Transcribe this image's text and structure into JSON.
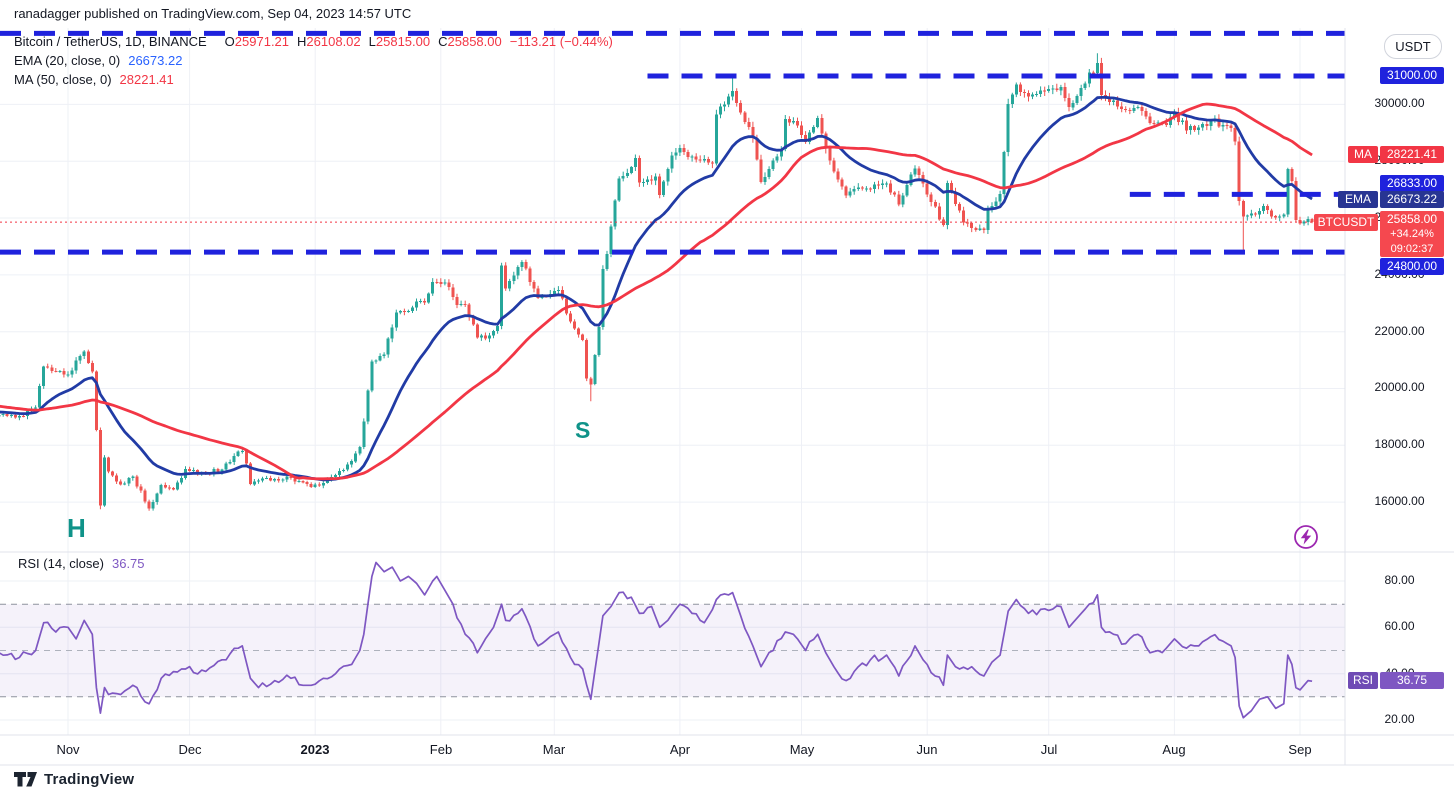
{
  "header": {
    "text": "ranadagger published on TradingView.com, Sep 04, 2023 14:57 UTC"
  },
  "toolbar": {
    "currency_button": "USDT"
  },
  "legend": {
    "symbol": "Bitcoin / TetherUS, 1D, BINANCE",
    "ohlc": [
      {
        "k": "O",
        "v": "25971.21"
      },
      {
        "k": "H",
        "v": "26108.02"
      },
      {
        "k": "L",
        "v": "25815.00"
      },
      {
        "k": "C",
        "v": "25858.00"
      }
    ],
    "change": "−113.21 (−0.44%)",
    "ema_label": "EMA (20, close, 0)",
    "ema_value": "26673.22",
    "ma_label": "MA (50, close, 0)",
    "ma_value": "28221.41"
  },
  "rsi_legend": {
    "label": "RSI (14, close)",
    "value": "36.75"
  },
  "price_axis": {
    "r31000": "31000.00",
    "ma_label": "MA",
    "ma_value": "28221.41",
    "r26833": "26833.00",
    "ema_label": "EMA",
    "ema_value": "26673.22",
    "sym_label": "BTCUSDT",
    "sym_price": "25858.00",
    "sym_change": "+34.24%",
    "sym_countdown": "09:02:37",
    "s24800": "24800.00",
    "rsi_label": "RSI",
    "rsi_value": "36.75"
  },
  "annotations": {
    "head_label": "H",
    "shoulder_label": "S"
  },
  "footer": {
    "brand": "TradingView"
  },
  "colors": {
    "up": "#26a69a",
    "down": "#ef5350",
    "ema": "#213ba5",
    "ma": "#f23645",
    "level_blue": "#1f22dd",
    "price_line": "#f23645",
    "rsi": "#7e57c2",
    "grid": "#eef0f6",
    "border": "#e0e3eb",
    "band_line": "#8f939e",
    "band_mid": "#aeb2bc"
  },
  "chart_data": {
    "type": "candlestick",
    "symbol": "BTCUSDT",
    "exchange": "BINANCE",
    "interval": "1D",
    "current_bar": {
      "o": 25971.21,
      "h": 26108.02,
      "l": 25815.0,
      "c": 25858.0,
      "change": -113.21,
      "change_pct": -0.44
    },
    "indicators": {
      "ema20": 26673.22,
      "ma50": 28221.41,
      "rsi14": 36.75
    },
    "ylim_price": [
      15500,
      32700
    ],
    "ylim_rsi": [
      10,
      95
    ],
    "day_zero": "2022-11-01",
    "price_anchors": [
      [
        -67,
        20010
      ],
      [
        -57,
        19790
      ],
      [
        -48,
        19300
      ],
      [
        -40,
        18900
      ],
      [
        -34,
        19600
      ],
      [
        -27,
        19060
      ],
      [
        -22,
        19150
      ],
      [
        -17,
        19070
      ],
      [
        -12,
        19040
      ],
      [
        -8,
        19330
      ],
      [
        -7,
        20080
      ],
      [
        -6,
        20770
      ],
      [
        -3,
        20600
      ],
      [
        0,
        20490
      ],
      [
        3,
        21150
      ],
      [
        4,
        21300
      ],
      [
        5,
        20900
      ],
      [
        6,
        20600
      ],
      [
        7,
        18545
      ],
      [
        8,
        15880
      ],
      [
        9,
        17570
      ],
      [
        10,
        17070
      ],
      [
        13,
        16620
      ],
      [
        16,
        16900
      ],
      [
        20,
        15780
      ],
      [
        23,
        16600
      ],
      [
        26,
        16450
      ],
      [
        29,
        17160
      ],
      [
        34,
        17020
      ],
      [
        38,
        17150
      ],
      [
        42,
        17780
      ],
      [
        43,
        17800
      ],
      [
        44,
        17360
      ],
      [
        45,
        16630
      ],
      [
        48,
        16840
      ],
      [
        51,
        16820
      ],
      [
        55,
        16840
      ],
      [
        58,
        16700
      ],
      [
        60,
        16540
      ],
      [
        63,
        16680
      ],
      [
        66,
        16950
      ],
      [
        70,
        17440
      ],
      [
        72,
        17943
      ],
      [
        73,
        18846
      ],
      [
        74,
        19930
      ],
      [
        75,
        20954
      ],
      [
        78,
        21190
      ],
      [
        81,
        22670
      ],
      [
        83,
        22710
      ],
      [
        86,
        23060
      ],
      [
        88,
        23020
      ],
      [
        90,
        23750
      ],
      [
        93,
        23730
      ],
      [
        96,
        22940
      ],
      [
        98,
        22950
      ],
      [
        101,
        21790
      ],
      [
        104,
        21870
      ],
      [
        106,
        22200
      ],
      [
        107,
        24330
      ],
      [
        108,
        23520
      ],
      [
        111,
        24280
      ],
      [
        112,
        24450
      ],
      [
        116,
        23190
      ],
      [
        119,
        23330
      ],
      [
        121,
        23470
      ],
      [
        124,
        22350
      ],
      [
        127,
        21710
      ],
      [
        128,
        20360
      ],
      [
        129,
        20150
      ],
      [
        131,
        22160
      ],
      [
        132,
        24200
      ],
      [
        133,
        24740
      ],
      [
        136,
        27400
      ],
      [
        139,
        27790
      ],
      [
        140,
        28110
      ],
      [
        141,
        27250
      ],
      [
        145,
        27460
      ],
      [
        146,
        26820
      ],
      [
        149,
        28200
      ],
      [
        151,
        28460
      ],
      [
        154,
        28170
      ],
      [
        159,
        27920
      ],
      [
        160,
        29650
      ],
      [
        163,
        30280
      ],
      [
        164,
        30480
      ],
      [
        169,
        28820
      ],
      [
        171,
        27270
      ],
      [
        176,
        28430
      ],
      [
        177,
        29480
      ],
      [
        180,
        29250
      ],
      [
        182,
        28680
      ],
      [
        185,
        29530
      ],
      [
        187,
        28440
      ],
      [
        189,
        27640
      ],
      [
        192,
        26800
      ],
      [
        196,
        27040
      ],
      [
        202,
        27220
      ],
      [
        205,
        26470
      ],
      [
        209,
        27750
      ],
      [
        211,
        27220
      ],
      [
        216,
        25750
      ],
      [
        217,
        27240
      ],
      [
        221,
        25850
      ],
      [
        226,
        25580
      ],
      [
        227,
        26330
      ],
      [
        230,
        26850
      ],
      [
        231,
        28320
      ],
      [
        232,
        30020
      ],
      [
        234,
        30700
      ],
      [
        237,
        30270
      ],
      [
        241,
        30470
      ],
      [
        245,
        30620
      ],
      [
        247,
        29900
      ],
      [
        249,
        30290
      ],
      [
        254,
        31460
      ],
      [
        255,
        30330
      ],
      [
        258,
        30140
      ],
      [
        261,
        29800
      ],
      [
        264,
        29910
      ],
      [
        267,
        29350
      ],
      [
        271,
        29280
      ],
      [
        273,
        29710
      ],
      [
        276,
        29090
      ],
      [
        279,
        29180
      ],
      [
        282,
        29430
      ],
      [
        285,
        29280
      ],
      [
        287,
        29170
      ],
      [
        288,
        28700
      ],
      [
        289,
        26600
      ],
      [
        290,
        26050
      ],
      [
        293,
        26130
      ],
      [
        295,
        26430
      ],
      [
        298,
        26010
      ],
      [
        300,
        26120
      ],
      [
        301,
        27720
      ],
      [
        302,
        27300
      ],
      [
        303,
        25930
      ],
      [
        304,
        25800
      ],
      [
        306,
        25960
      ],
      [
        307,
        25858
      ]
    ],
    "extremes": [
      [
        8,
        "l",
        15750
      ],
      [
        20,
        "l",
        15700
      ],
      [
        129,
        "l",
        19550
      ],
      [
        164,
        "h",
        31000
      ],
      [
        232,
        "h",
        30200
      ],
      [
        254,
        "h",
        31800
      ],
      [
        290,
        "l",
        24800
      ]
    ],
    "levels": [
      {
        "price": 32500,
        "from_day": -17,
        "to_day": 316
      },
      {
        "price": 31000,
        "from_day": 143,
        "to_day": 316
      },
      {
        "price": 26833,
        "from_day": 262,
        "to_day": 316
      },
      {
        "price": 24800,
        "from_day": -17,
        "to_day": 316
      }
    ],
    "price_line": 25858,
    "rsi_bands": {
      "upper": 70,
      "middle": 50,
      "lower": 30
    },
    "rsi_points": [
      [
        -17,
        49
      ],
      [
        -12,
        47
      ],
      [
        -8,
        50
      ],
      [
        -6,
        62
      ],
      [
        -3,
        58
      ],
      [
        0,
        60
      ],
      [
        2,
        55
      ],
      [
        4,
        63
      ],
      [
        6,
        57
      ],
      [
        7,
        34
      ],
      [
        8,
        23
      ],
      [
        9,
        34
      ],
      [
        10,
        31
      ],
      [
        13,
        31
      ],
      [
        16,
        35
      ],
      [
        20,
        27
      ],
      [
        23,
        38
      ],
      [
        29,
        42
      ],
      [
        34,
        41
      ],
      [
        38,
        46
      ],
      [
        42,
        51
      ],
      [
        43,
        52
      ],
      [
        45,
        38
      ],
      [
        47,
        34
      ],
      [
        51,
        37
      ],
      [
        55,
        38
      ],
      [
        58,
        35
      ],
      [
        60,
        35
      ],
      [
        63,
        38
      ],
      [
        66,
        40
      ],
      [
        70,
        44
      ],
      [
        72,
        50
      ],
      [
        73,
        57
      ],
      [
        74,
        70
      ],
      [
        75,
        82
      ],
      [
        76,
        88
      ],
      [
        78,
        84
      ],
      [
        80,
        86
      ],
      [
        82,
        80
      ],
      [
        84,
        82
      ],
      [
        86,
        79
      ],
      [
        88,
        74
      ],
      [
        90,
        80
      ],
      [
        91,
        82
      ],
      [
        93,
        76
      ],
      [
        95,
        70
      ],
      [
        98,
        57
      ],
      [
        101,
        49
      ],
      [
        103,
        55
      ],
      [
        105,
        60
      ],
      [
        107,
        70
      ],
      [
        108,
        63
      ],
      [
        111,
        66
      ],
      [
        112,
        68
      ],
      [
        116,
        52
      ],
      [
        119,
        56
      ],
      [
        121,
        58
      ],
      [
        124,
        47
      ],
      [
        127,
        42
      ],
      [
        128,
        35
      ],
      [
        129,
        29
      ],
      [
        131,
        53
      ],
      [
        132,
        65
      ],
      [
        134,
        69
      ],
      [
        136,
        75
      ],
      [
        139,
        73
      ],
      [
        141,
        66
      ],
      [
        144,
        69
      ],
      [
        146,
        60
      ],
      [
        148,
        63
      ],
      [
        151,
        70
      ],
      [
        154,
        66
      ],
      [
        157,
        62
      ],
      [
        160,
        72
      ],
      [
        163,
        74
      ],
      [
        164,
        75
      ],
      [
        166,
        65
      ],
      [
        169,
        52
      ],
      [
        171,
        43
      ],
      [
        174,
        50
      ],
      [
        177,
        58
      ],
      [
        179,
        57
      ],
      [
        180,
        55
      ],
      [
        182,
        50
      ],
      [
        185,
        57
      ],
      [
        187,
        49
      ],
      [
        189,
        43
      ],
      [
        192,
        37
      ],
      [
        195,
        43
      ],
      [
        198,
        46
      ],
      [
        202,
        48
      ],
      [
        205,
        39
      ],
      [
        209,
        52
      ],
      [
        211,
        46
      ],
      [
        216,
        35
      ],
      [
        217,
        48
      ],
      [
        220,
        42
      ],
      [
        223,
        43
      ],
      [
        226,
        39
      ],
      [
        228,
        45
      ],
      [
        230,
        48
      ],
      [
        232,
        67
      ],
      [
        234,
        72
      ],
      [
        237,
        66
      ],
      [
        241,
        68
      ],
      [
        245,
        69
      ],
      [
        247,
        60
      ],
      [
        249,
        64
      ],
      [
        254,
        74
      ],
      [
        255,
        60
      ],
      [
        258,
        57
      ],
      [
        261,
        53
      ],
      [
        264,
        57
      ],
      [
        267,
        49
      ],
      [
        271,
        51
      ],
      [
        273,
        55
      ],
      [
        276,
        51
      ],
      [
        279,
        52
      ],
      [
        282,
        56
      ],
      [
        285,
        54
      ],
      [
        287,
        52
      ],
      [
        288,
        47
      ],
      [
        289,
        26
      ],
      [
        290,
        21
      ],
      [
        292,
        24
      ],
      [
        294,
        29
      ],
      [
        296,
        30
      ],
      [
        298,
        25
      ],
      [
        300,
        27
      ],
      [
        301,
        48
      ],
      [
        302,
        44
      ],
      [
        303,
        34
      ],
      [
        304,
        33
      ],
      [
        306,
        37
      ],
      [
        307,
        36.75
      ]
    ],
    "y_ticks": [
      {
        "v": 30000,
        "label": "30000.00"
      },
      {
        "v": 28000,
        "label": "28000.00"
      },
      {
        "v": 26000,
        "label": "26000.00"
      },
      {
        "v": 24000,
        "label": "24000.00"
      },
      {
        "v": 22000,
        "label": "22000.00"
      },
      {
        "v": 20000,
        "label": "20000.00"
      },
      {
        "v": 18000,
        "label": "18000.00"
      },
      {
        "v": 16000,
        "label": "16000.00"
      }
    ],
    "rsi_ticks": [
      {
        "v": 80,
        "label": "80.00"
      },
      {
        "v": 60,
        "label": "60.00"
      },
      {
        "v": 40,
        "label": "40.00"
      },
      {
        "v": 20,
        "label": "20.00"
      }
    ],
    "months": [
      {
        "label": "Nov",
        "day": 0
      },
      {
        "label": "Dec",
        "day": 30
      },
      {
        "label": "2023",
        "day": 61,
        "bold": true
      },
      {
        "label": "Feb",
        "day": 92
      },
      {
        "label": "Mar",
        "day": 120
      },
      {
        "label": "Apr",
        "day": 151
      },
      {
        "label": "May",
        "day": 181
      },
      {
        "label": "Jun",
        "day": 212
      },
      {
        "label": "Jul",
        "day": 242
      },
      {
        "label": "Aug",
        "day": 273
      },
      {
        "label": "Sep",
        "day": 304
      }
    ]
  }
}
